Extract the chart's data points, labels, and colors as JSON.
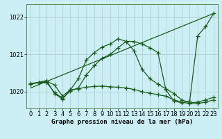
{
  "background_color": "#cceef5",
  "grid_color": "#aacccc",
  "line_color": "#1a5c1a",
  "marker": "+",
  "markersize": 4,
  "linewidth": 0.9,
  "xlabel": "Graphe pression niveau de la mer (hPa)",
  "xlabel_fontsize": 6.5,
  "xlim": [
    -0.5,
    23.5
  ],
  "xticks": [
    0,
    1,
    2,
    3,
    4,
    5,
    6,
    7,
    8,
    9,
    10,
    11,
    12,
    13,
    14,
    15,
    16,
    17,
    18,
    19,
    20,
    21,
    22,
    23
  ],
  "yticks": [
    1020,
    1021,
    1022
  ],
  "ylim": [
    1019.55,
    1022.35
  ],
  "tick_fontsize": 6,
  "series": [
    {
      "x": [
        0,
        1,
        2,
        3,
        4,
        5,
        6,
        7,
        8,
        9,
        10,
        11,
        12,
        13,
        14,
        15,
        16,
        17,
        18,
        19,
        20,
        21,
        22,
        23
      ],
      "y": [
        1020.2,
        1020.25,
        1020.3,
        1019.95,
        1019.8,
        1020.05,
        1020.35,
        1020.85,
        1021.05,
        1021.2,
        1021.28,
        1021.42,
        1021.35,
        1021.35,
        1021.28,
        1021.18,
        1021.05,
        1020.05,
        1019.75,
        1019.7,
        1019.75,
        1021.5,
        1021.75,
        1022.1
      ],
      "has_marker": true
    },
    {
      "x": [
        0,
        1,
        2,
        3,
        4,
        5,
        6,
        7,
        8,
        9,
        10,
        11,
        12,
        13,
        14,
        15,
        16,
        17,
        18,
        19,
        20,
        21,
        22,
        23
      ],
      "y": [
        1020.2,
        1020.25,
        1020.25,
        1019.98,
        1019.82,
        1020.02,
        1020.1,
        1020.45,
        1020.7,
        1020.9,
        1021.0,
        1021.18,
        1021.35,
        1021.1,
        1020.6,
        1020.35,
        1020.2,
        1020.08,
        1019.95,
        1019.78,
        1019.7,
        1019.72,
        1019.78,
        1019.85
      ],
      "has_marker": true
    },
    {
      "x": [
        0,
        1,
        2,
        3,
        4,
        5,
        6,
        7,
        8,
        9,
        10,
        11,
        12,
        13,
        14,
        15,
        16,
        17,
        18,
        19,
        20,
        21,
        22,
        23
      ],
      "y": [
        1020.22,
        1020.25,
        1020.28,
        1020.18,
        1019.88,
        1020.05,
        1020.08,
        1020.12,
        1020.14,
        1020.15,
        1020.13,
        1020.12,
        1020.1,
        1020.06,
        1020.0,
        1019.96,
        1019.92,
        1019.88,
        1019.78,
        1019.72,
        1019.68,
        1019.68,
        1019.72,
        1019.78
      ],
      "has_marker": true
    },
    {
      "x": [
        0,
        23
      ],
      "y": [
        1020.1,
        1022.1
      ],
      "has_marker": false
    }
  ]
}
